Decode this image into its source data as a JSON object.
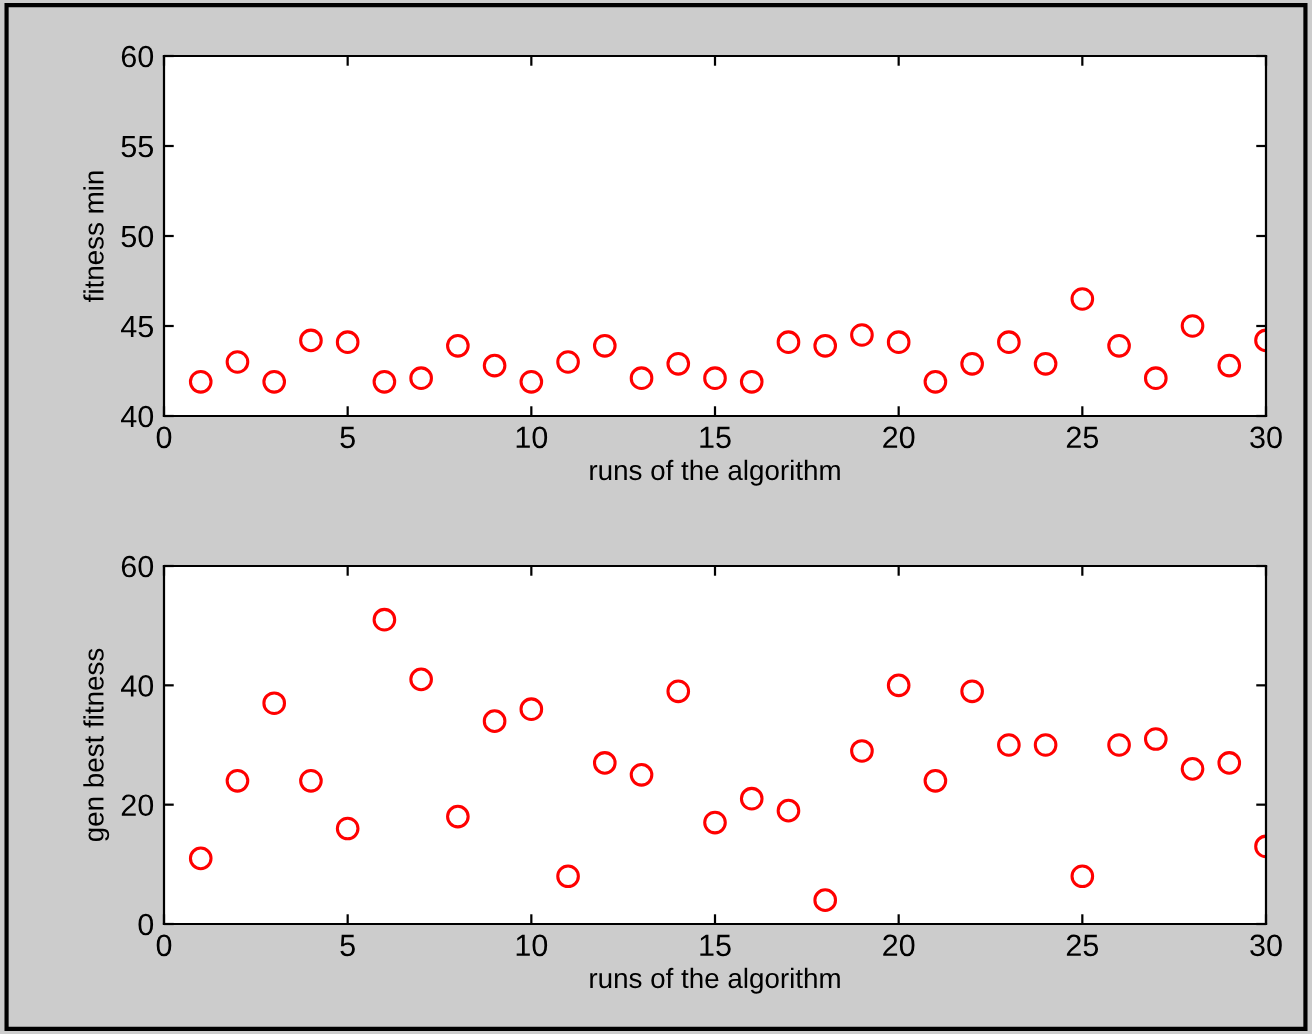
{
  "chart_data": [
    {
      "type": "scatter",
      "xlabel": "runs of the algorithm",
      "ylabel": "fitness min",
      "x": [
        1,
        2,
        3,
        4,
        5,
        6,
        7,
        8,
        9,
        10,
        11,
        12,
        13,
        14,
        15,
        16,
        17,
        18,
        19,
        20,
        21,
        22,
        23,
        24,
        25,
        26,
        27,
        28,
        29,
        30
      ],
      "series": [
        {
          "color": "#ff0000",
          "values": [
            41.9,
            43.0,
            41.9,
            44.2,
            44.1,
            41.9,
            42.1,
            43.9,
            42.8,
            41.9,
            43.0,
            43.9,
            42.1,
            42.9,
            42.1,
            41.9,
            44.1,
            43.9,
            44.5,
            44.1,
            41.9,
            42.9,
            44.1,
            42.9,
            46.5,
            43.9,
            42.1,
            45.0,
            42.8,
            44.2
          ]
        }
      ],
      "marker": "circle",
      "xlim": [
        0,
        30
      ],
      "xticks": [
        0,
        5,
        10,
        15,
        20,
        25,
        30
      ],
      "ylim": [
        40,
        60
      ],
      "yticks": [
        40,
        45,
        50,
        55,
        60
      ]
    },
    {
      "type": "scatter",
      "xlabel": "runs of the algorithm",
      "ylabel": "gen best fitness",
      "x": [
        1,
        2,
        3,
        4,
        5,
        6,
        7,
        8,
        9,
        10,
        11,
        12,
        13,
        14,
        15,
        16,
        17,
        18,
        19,
        20,
        21,
        22,
        23,
        24,
        25,
        26,
        27,
        28,
        29,
        30
      ],
      "series": [
        {
          "color": "#ff0000",
          "values": [
            11,
            24,
            37,
            24,
            16,
            51,
            41,
            18,
            34,
            36,
            8,
            27,
            25,
            39,
            17,
            21,
            19,
            4,
            29,
            40,
            24,
            39,
            30,
            30,
            8,
            30,
            31,
            26,
            27,
            13
          ]
        }
      ],
      "marker": "circle",
      "xlim": [
        0,
        30
      ],
      "xticks": [
        0,
        5,
        10,
        15,
        20,
        25,
        30
      ],
      "ylim": [
        0,
        60
      ],
      "yticks": [
        0,
        20,
        40,
        60
      ]
    }
  ]
}
